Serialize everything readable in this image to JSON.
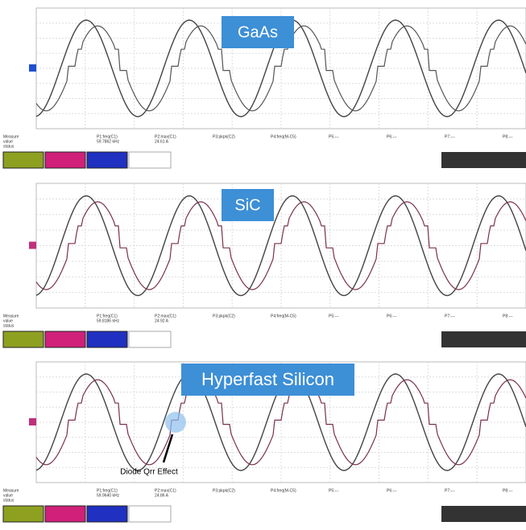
{
  "panels": [
    {
      "title": "GaAs",
      "measure": {
        "labels": [
          "Measure",
          "value",
          "status"
        ],
        "params": [
          "P1:freq(C1)",
          "P2:max(C1)",
          "P3:pkpk(C2)",
          "P4:freq(M-C5)",
          "P5:---",
          "P6:---",
          "P7:---",
          "P8:---"
        ],
        "values": [
          "59.7862 kHz",
          "24.61 A"
        ]
      }
    },
    {
      "title": "SiC",
      "measure": {
        "labels": [
          "Measure",
          "value",
          "status"
        ],
        "params": [
          "P1:freq(C1)",
          "P2:max(C1)",
          "P3:pkpk(C2)",
          "P4:freq(M-C5)",
          "P5:---",
          "P6:---",
          "P7:---",
          "P8:---"
        ],
        "values": [
          "59.8186 kHz",
          "24.92 A"
        ]
      }
    },
    {
      "title": "Hyperfast Silicon",
      "measure": {
        "labels": [
          "Measure",
          "value",
          "status"
        ],
        "params": [
          "P1:freq(C1)",
          "P2:max(C1)",
          "P3:pkpk(C2)",
          "P4:freq(M-C5)",
          "P5:---",
          "P6:---",
          "P7:---",
          "P8:---"
        ],
        "values": [
          "59.9640 kHz",
          "24.86 A"
        ]
      }
    }
  ],
  "annotation": "Diode Qrr Effect"
}
